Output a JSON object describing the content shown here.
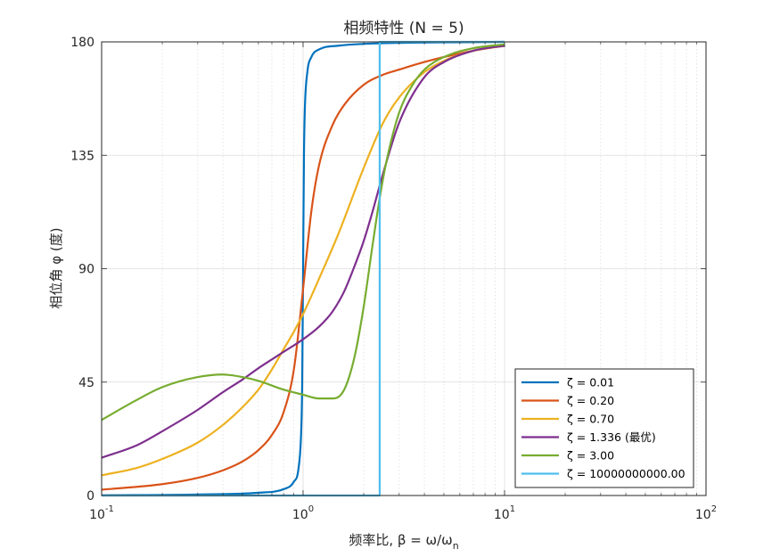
{
  "chart_data": {
    "type": "line",
    "title": "相频特性 (N = 5)",
    "xlabel": "频率比, β = ω/ω",
    "xlabel_subscript": "n",
    "ylabel": "相位角 φ (度)",
    "xscale": "log",
    "xlim": [
      0.1,
      100
    ],
    "ylim": [
      0,
      180
    ],
    "xticks": [
      {
        "base": "10",
        "exp": "-1"
      },
      {
        "base": "10",
        "exp": "0"
      },
      {
        "base": "10",
        "exp": "1"
      },
      {
        "base": "10",
        "exp": "2"
      }
    ],
    "yticks": [
      "0",
      "45",
      "90",
      "135",
      "180"
    ],
    "grid": true,
    "legend_position": "bottom-right",
    "series": [
      {
        "name": "ζ = 0.01",
        "color": "#0072BD",
        "x": [
          0.1,
          0.3,
          0.6,
          0.8,
          0.9,
          0.95,
          0.98,
          0.99,
          1.0,
          1.01,
          1.02,
          1.05,
          1.1,
          1.2,
          1.5,
          2,
          3,
          5,
          10
        ],
        "y": [
          0.1,
          0.4,
          1.1,
          2.5,
          5.5,
          11,
          27,
          45,
          90,
          135,
          153,
          168,
          174,
          177,
          178.5,
          179.2,
          179.6,
          179.8,
          180
        ]
      },
      {
        "name": "ζ = 0.20",
        "color": "#D95319",
        "x": [
          0.1,
          0.2,
          0.3,
          0.4,
          0.5,
          0.6,
          0.7,
          0.8,
          0.9,
          1.0,
          1.1,
          1.2,
          1.4,
          1.6,
          2,
          2.5,
          3,
          4,
          5,
          7,
          10
        ],
        "y": [
          2.3,
          4.5,
          7,
          10,
          13.5,
          18,
          24,
          33,
          50,
          82,
          113,
          131,
          147,
          155,
          163,
          167,
          169,
          172,
          174,
          176.5,
          178.5
        ]
      },
      {
        "name": "ζ = 0.70",
        "color": "#EDB120",
        "x": [
          0.1,
          0.15,
          0.2,
          0.3,
          0.4,
          0.5,
          0.6,
          0.7,
          0.8,
          0.9,
          1.0,
          1.2,
          1.5,
          2,
          2.5,
          3,
          4,
          5,
          7,
          10
        ],
        "y": [
          8,
          11,
          14.5,
          21,
          28,
          35,
          42,
          50,
          58,
          65,
          72,
          86,
          104,
          130,
          148,
          158,
          168,
          172.5,
          176.5,
          178.5
        ]
      },
      {
        "name": "ζ = 1.336 (最优)",
        "color": "#7E2F8E",
        "x": [
          0.1,
          0.15,
          0.2,
          0.3,
          0.4,
          0.5,
          0.6,
          0.7,
          0.8,
          1.0,
          1.2,
          1.4,
          1.6,
          1.8,
          2.0,
          2.2,
          2.5,
          3,
          4,
          5,
          7,
          10
        ],
        "y": [
          15,
          20,
          25.5,
          34,
          41,
          46,
          50.5,
          54,
          57,
          62,
          67,
          73,
          81,
          91,
          101,
          112,
          128,
          148,
          166,
          172,
          176.5,
          178.5
        ]
      },
      {
        "name": "ζ = 3.00",
        "color": "#77AC30",
        "x": [
          0.1,
          0.15,
          0.2,
          0.3,
          0.4,
          0.5,
          0.6,
          0.8,
          1.0,
          1.2,
          1.4,
          1.6,
          1.8,
          2.0,
          2.2,
          2.4,
          2.6,
          3,
          3.5,
          4,
          5,
          7,
          10
        ],
        "y": [
          30,
          38,
          43,
          47,
          48,
          47,
          45.5,
          42,
          40,
          38.5,
          38.5,
          42,
          55,
          75,
          98,
          118,
          133,
          152,
          163,
          169,
          174,
          177.5,
          179
        ]
      },
      {
        "name": "ζ = 10000000000.00",
        "color": "#4DBEEE",
        "x": [
          0.1,
          2.4,
          2.4,
          10
        ],
        "y": [
          0,
          0,
          180,
          180
        ]
      }
    ]
  }
}
